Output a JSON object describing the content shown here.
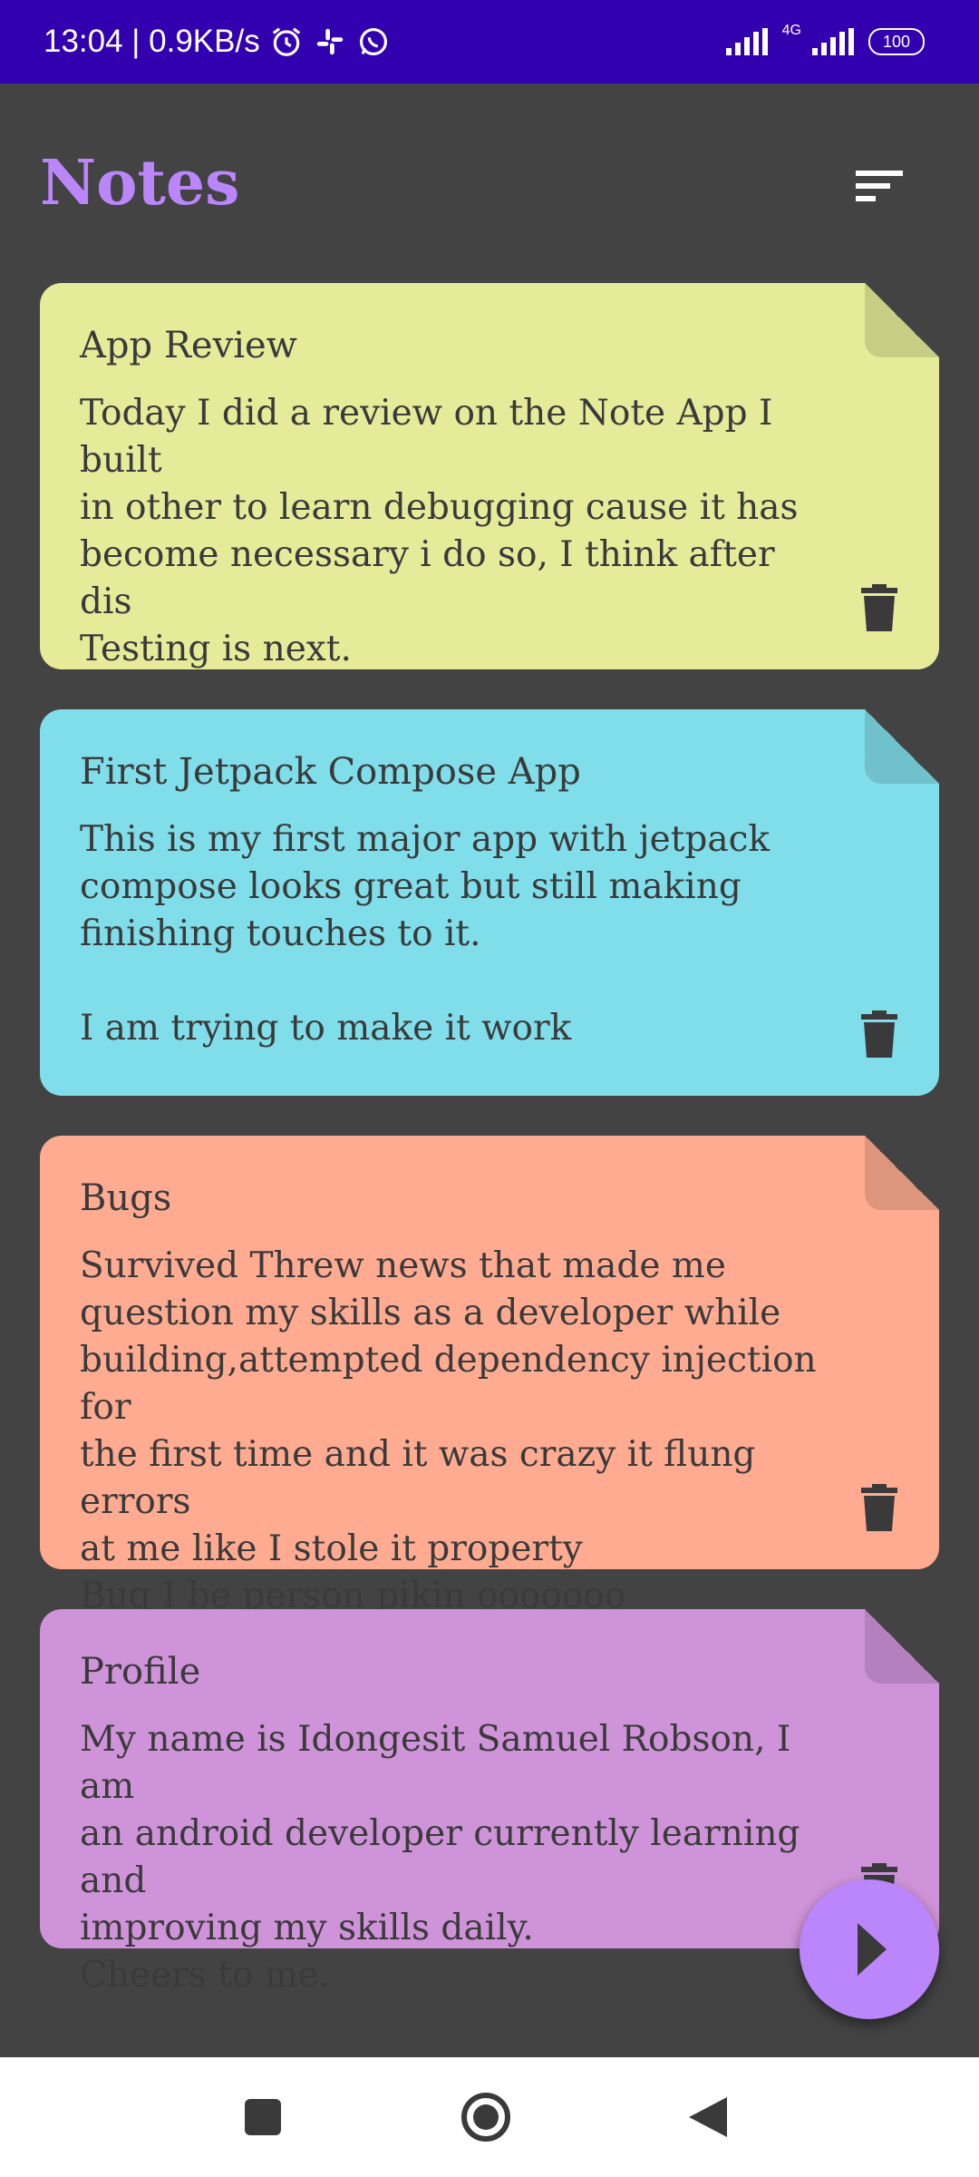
{
  "status_bar": {
    "time_speed": "13:04 | 0.9KB/s",
    "network": "4G",
    "battery": "100"
  },
  "header": {
    "title": "Notes"
  },
  "notes": [
    {
      "title": "App Review",
      "body": "Today I did a review on the Note App I built\nin other to learn debugging cause it has\nbecome necessary i do so, I think after dis\nTesting is next.",
      "color": "#e6eb9a"
    },
    {
      "title": "First Jetpack Compose App",
      "body": "This is my first major app with jetpack\ncompose looks great but still making\nfinishing touches to it.\n\nI am trying to make it work",
      "color": "#80deea"
    },
    {
      "title": "Bugs",
      "body": "Survived Threw news that made me\nquestion my skills as a developer while\nbuilding,attempted dependency injection for\nthe first time and it was crazy it flung errors\nat me like I stole it property\nBug I be person pikin ooooooo",
      "color": "#ffab91"
    },
    {
      "title": "Profile",
      "body": "My name is Idongesit Samuel Robson, I am\nan android developer currently learning and\nimproving my skills daily.\nCheers to me.",
      "color": "#cf93d9"
    }
  ],
  "colors": {
    "accent": "#bb86fc",
    "status_bar": "#3300b0",
    "background": "#434343"
  },
  "icons": {
    "sort": "sort-icon",
    "delete": "trash-icon",
    "fab": "play-arrow-icon"
  }
}
